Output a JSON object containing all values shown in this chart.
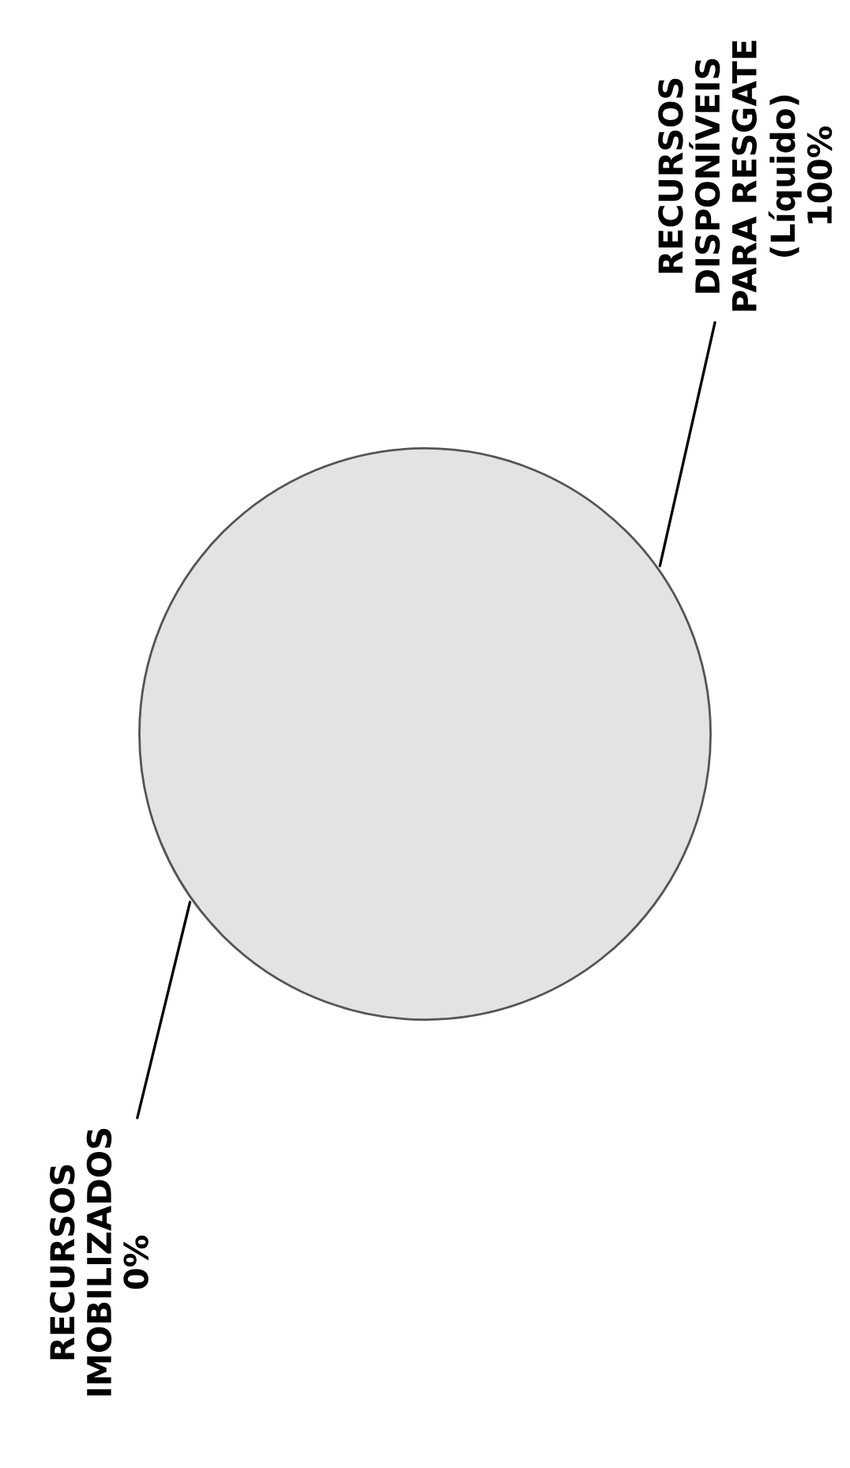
{
  "chart_data": {
    "type": "pie",
    "categories": [
      "RECURSOS\nIMOBILIZADOS",
      "RECURSOS\nDISPONÍVEIS\nPARA RESGATE\n(Líquido)"
    ],
    "values": [
      0,
      100
    ],
    "value_labels": [
      "0%",
      "100%"
    ],
    "colors": [
      "#2e2e2e",
      "#e3e3e3"
    ],
    "legend": false
  }
}
